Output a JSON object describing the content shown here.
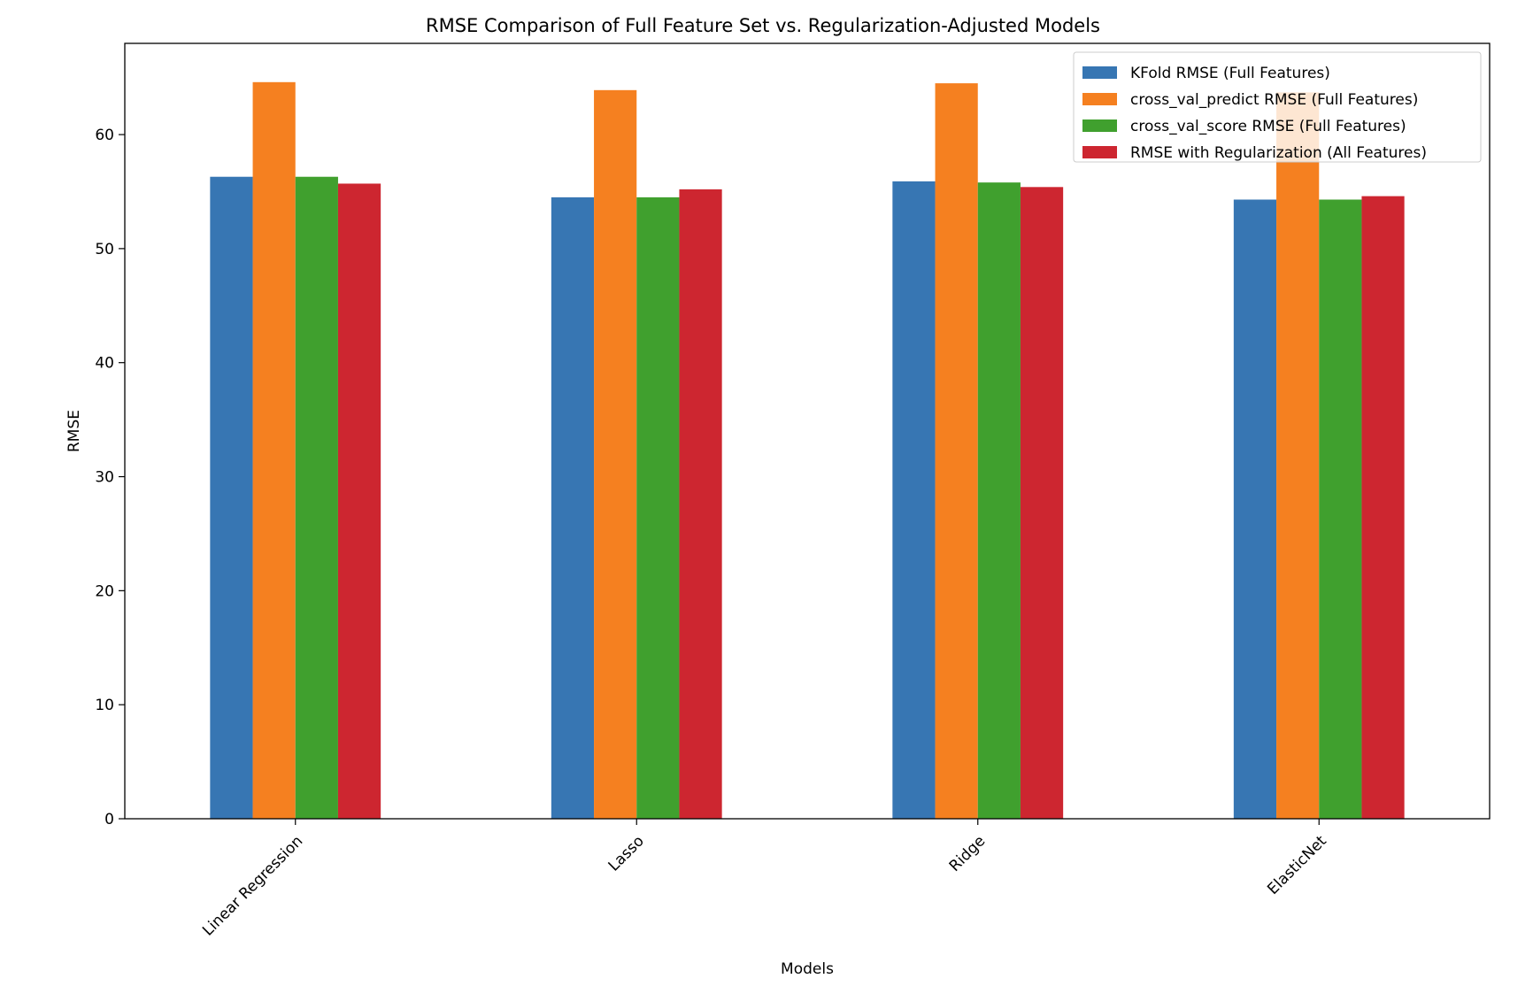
{
  "chart_data": {
    "type": "bar",
    "title": "RMSE Comparison of Full Feature Set vs. Regularization-Adjusted Models",
    "xlabel": "Models",
    "ylabel": "RMSE",
    "ylim": [
      0,
      68
    ],
    "yticks": [
      0,
      10,
      20,
      30,
      40,
      50,
      60
    ],
    "categories": [
      "Linear Regression",
      "Lasso",
      "Ridge",
      "ElasticNet"
    ],
    "legend_position": "top-right",
    "series": [
      {
        "name": "KFold RMSE (Full Features)",
        "color": "#3776b3",
        "values": [
          56.3,
          54.5,
          55.9,
          54.3
        ]
      },
      {
        "name": "cross_val_predict RMSE (Full Features)",
        "color": "#f58020",
        "values": [
          64.6,
          63.9,
          64.5,
          63.7
        ]
      },
      {
        "name": "cross_val_score RMSE (Full Features)",
        "color": "#40a02e",
        "values": [
          56.3,
          54.5,
          55.8,
          54.3
        ]
      },
      {
        "name": "RMSE with Regularization (All Features)",
        "color": "#cd2630",
        "values": [
          55.7,
          55.2,
          55.4,
          54.6
        ]
      }
    ]
  }
}
